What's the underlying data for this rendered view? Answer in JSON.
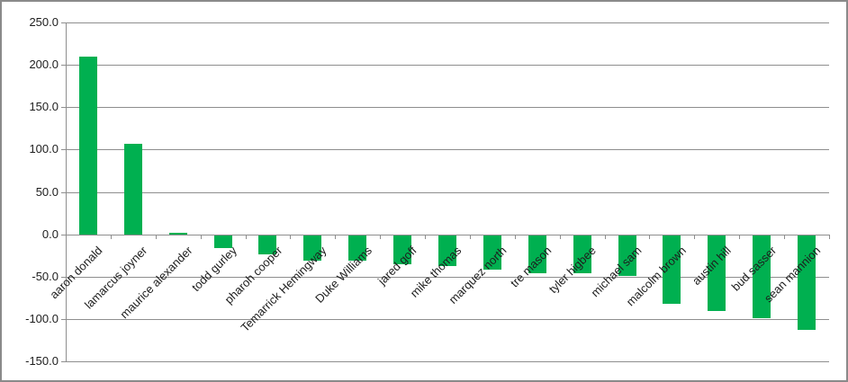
{
  "chart_data": {
    "type": "bar",
    "title": "",
    "xlabel": "",
    "ylabel": "",
    "categories": [
      "aaron donald",
      "lamarcus joyner",
      "maurice alexander",
      "todd gurley",
      "pharoh cooper",
      "Temarrick Hemingway",
      "Duke Williams",
      "jared goff",
      "mike thomas",
      "marquez north",
      "tre mason",
      "tyler higbee",
      "michael sam",
      "malcolm brown",
      "austin hill",
      "bud sasser",
      "sean mannion"
    ],
    "values": [
      210,
      107,
      2,
      -15,
      -23,
      -30,
      -30,
      -34,
      -36,
      -41,
      -45,
      -45,
      -48,
      -81,
      -89,
      -98,
      -112
    ],
    "ylim": [
      -150,
      250
    ],
    "ytick_step": 50,
    "ytick_labels": [
      "250.0",
      "200.0",
      "150.0",
      "100.0",
      "50.0",
      "0.0",
      "-50.0",
      "-100.0",
      "-150.0"
    ],
    "grid": true,
    "legend": "none",
    "x_label_rotation_deg": 45,
    "colors": {
      "bar_fill": "#00B050",
      "gridline": "#8e8e8e",
      "axis": "#8e8e8e",
      "text": "#1d1d1d",
      "background": "#ffffff",
      "frame_border": "#8a8a8a"
    }
  }
}
